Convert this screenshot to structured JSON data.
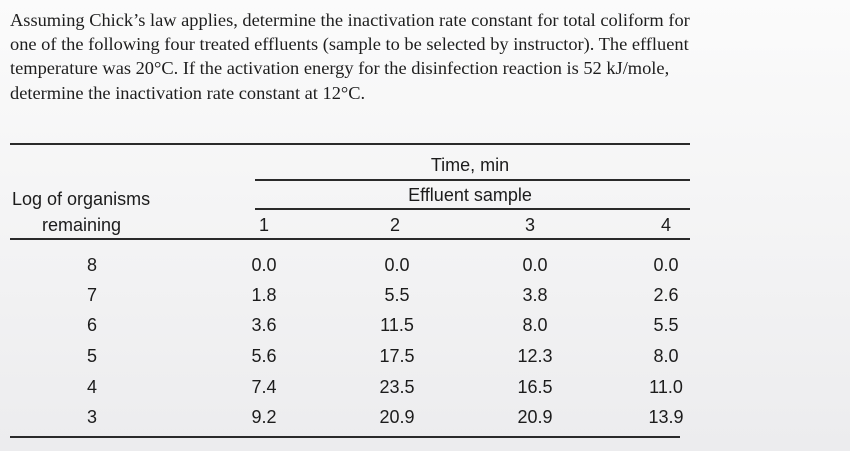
{
  "problem_lines": [
    "Assuming Chick’s law applies, determine the inactivation rate constant for total coliform for",
    "one of the following four treated effluents (sample to be selected by instructor). The effluent",
    "temperature was 20°C. If the activation energy for the disinfection reaction is 52 kJ/mole,",
    "determine the inactivation rate constant at 12°C."
  ],
  "table": {
    "row_header_line1": "Log of organisms",
    "row_header_line2": "remaining",
    "group_header": "Time, min",
    "subgroup_header": "Effluent sample",
    "columns": [
      "1",
      "2",
      "3",
      "4"
    ],
    "rows": [
      {
        "log": "8",
        "values": [
          "0.0",
          "0.0",
          "0.0",
          "0.0"
        ]
      },
      {
        "log": "7",
        "values": [
          "1.8",
          "5.5",
          "3.8",
          "2.6"
        ]
      },
      {
        "log": "6",
        "values": [
          "3.6",
          "11.5",
          "8.0",
          "5.5"
        ]
      },
      {
        "log": "5",
        "values": [
          "5.6",
          "17.5",
          "12.3",
          "8.0"
        ]
      },
      {
        "log": "4",
        "values": [
          "7.4",
          "23.5",
          "16.5",
          "11.0"
        ]
      },
      {
        "log": "3",
        "values": [
          "9.2",
          "20.9",
          "20.9",
          "13.9"
        ]
      }
    ]
  }
}
